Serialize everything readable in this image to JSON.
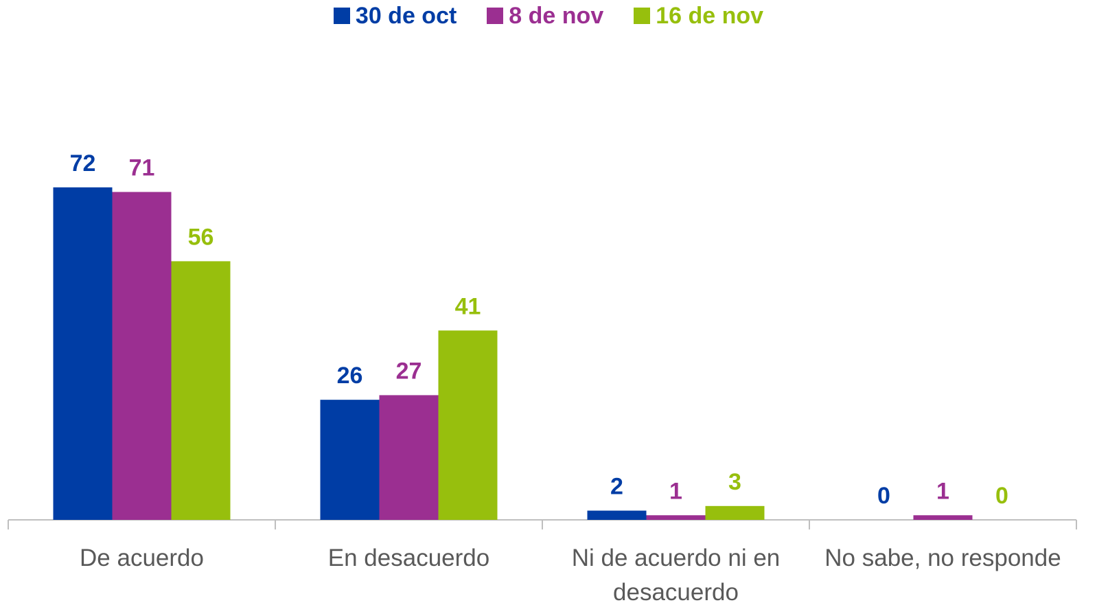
{
  "chart_data": {
    "type": "bar",
    "categories": [
      "De acuerdo",
      "En desacuerdo",
      "Ni de acuerdo ni en desacuerdo",
      "No sabe, no responde"
    ],
    "series": [
      {
        "name": "30 de oct",
        "color": "#003da5",
        "values": [
          72,
          26,
          2,
          0
        ]
      },
      {
        "name": "8 de nov",
        "color": "#9b2f91",
        "values": [
          71,
          27,
          1,
          1
        ]
      },
      {
        "name": "16 de nov",
        "color": "#97bf0d",
        "values": [
          56,
          41,
          3,
          0
        ]
      }
    ],
    "ylim": [
      0,
      80
    ],
    "legend": "top"
  }
}
